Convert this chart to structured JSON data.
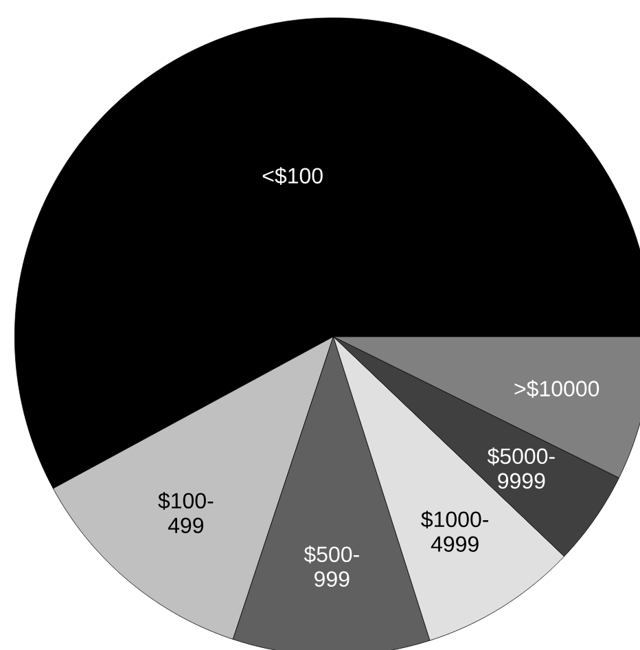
{
  "chart_data": {
    "type": "pie",
    "categories": [
      "<$100",
      "$100-499",
      "$500-999",
      "$1000-4999",
      "$5000-9999",
      ">$10000"
    ],
    "values": [
      57.9,
      12.0,
      10.0,
      8.0,
      4.8,
      7.3
    ],
    "colors": [
      "#000000",
      "#c0c0c0",
      "#606060",
      "#e0e0e0",
      "#404040",
      "#808080"
    ]
  }
}
